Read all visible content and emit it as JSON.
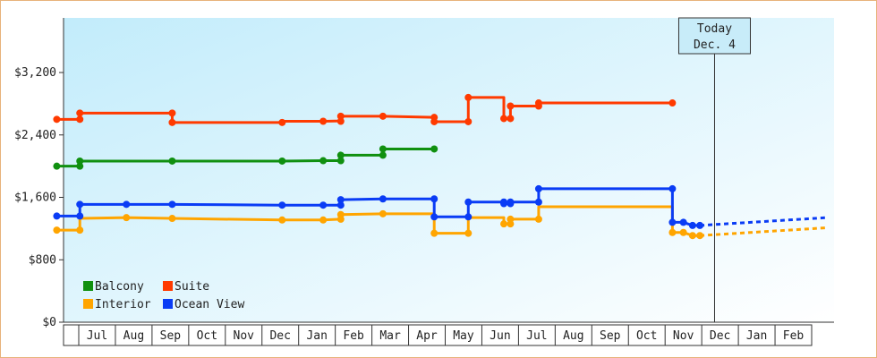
{
  "chart_data": {
    "type": "line",
    "title": "",
    "xlabel": "",
    "ylabel": "",
    "ylim": [
      0,
      3900
    ],
    "yticks": [
      0,
      800,
      1600,
      2400,
      3200
    ],
    "ytick_labels": [
      "$0",
      "$800",
      "$1,600",
      "$2,400",
      "$3,200"
    ],
    "xticks": [
      "Jul",
      "Aug",
      "Sep",
      "Oct",
      "Nov",
      "Dec",
      "Jan",
      "Feb",
      "Mar",
      "Apr",
      "May",
      "Jun",
      "Jul",
      "Aug",
      "Sep",
      "Oct",
      "Nov",
      "Dec",
      "Jan",
      "Feb"
    ],
    "grid": false,
    "background": "gradient light blue",
    "today_marker": {
      "line1": "Today",
      "line2": "Dec. 4",
      "x": 17.35
    },
    "legend": {
      "placement": "bottom-left",
      "entries": [
        {
          "name": "Balcony",
          "color": "#109010"
        },
        {
          "name": "Suite",
          "color": "#ff3a00"
        },
        {
          "name": "Interior",
          "color": "#ffa500"
        },
        {
          "name": "Ocean View",
          "color": "#0a3cf5"
        }
      ]
    },
    "series": [
      {
        "name": "Balcony",
        "color": "#109010",
        "points": [
          [
            -0.6,
            2000
          ],
          [
            0.03,
            2000
          ],
          [
            0.03,
            2065
          ],
          [
            2.55,
            2065
          ],
          [
            5.55,
            2065
          ],
          [
            6.67,
            2070
          ],
          [
            7.15,
            2070
          ],
          [
            7.15,
            2140
          ],
          [
            8.3,
            2140
          ],
          [
            8.3,
            2220
          ],
          [
            9.7,
            2220
          ]
        ]
      },
      {
        "name": "Suite",
        "color": "#ff3a00",
        "points": [
          [
            -0.6,
            2600
          ],
          [
            0.03,
            2600
          ],
          [
            0.03,
            2680
          ],
          [
            2.55,
            2680
          ],
          [
            2.55,
            2560
          ],
          [
            5.55,
            2560
          ],
          [
            5.55,
            2575
          ],
          [
            6.67,
            2575
          ],
          [
            7.15,
            2580
          ],
          [
            7.15,
            2640
          ],
          [
            8.3,
            2640
          ],
          [
            9.7,
            2625
          ],
          [
            9.7,
            2570
          ],
          [
            10.63,
            2570
          ],
          [
            10.63,
            2880
          ],
          [
            11.6,
            2880
          ],
          [
            11.6,
            2610
          ],
          [
            11.78,
            2610
          ],
          [
            11.78,
            2770
          ],
          [
            12.55,
            2770
          ],
          [
            12.55,
            2810
          ],
          [
            16.2,
            2810
          ]
        ]
      },
      {
        "name": "Interior",
        "color": "#ffa500",
        "points": [
          [
            -0.6,
            1180
          ],
          [
            0.03,
            1180
          ],
          [
            0.03,
            1330
          ],
          [
            1.3,
            1340
          ],
          [
            2.55,
            1330
          ],
          [
            5.55,
            1310
          ],
          [
            6.67,
            1310
          ],
          [
            7.15,
            1320
          ],
          [
            7.15,
            1380
          ],
          [
            8.3,
            1390
          ],
          [
            9.7,
            1390
          ],
          [
            9.7,
            1140
          ],
          [
            10.63,
            1140
          ],
          [
            10.63,
            1340
          ],
          [
            11.6,
            1340
          ],
          [
            11.6,
            1260
          ],
          [
            11.78,
            1260
          ],
          [
            11.78,
            1320
          ],
          [
            12.55,
            1320
          ],
          [
            12.55,
            1480
          ],
          [
            16.2,
            1480
          ],
          [
            16.2,
            1150
          ],
          [
            16.5,
            1150
          ],
          [
            16.75,
            1110
          ],
          [
            16.95,
            1110
          ]
        ]
      },
      {
        "name": "Ocean View",
        "color": "#0a3cf5",
        "points": [
          [
            -0.6,
            1360
          ],
          [
            0.03,
            1360
          ],
          [
            0.03,
            1510
          ],
          [
            1.3,
            1510
          ],
          [
            2.55,
            1510
          ],
          [
            5.55,
            1500
          ],
          [
            6.67,
            1500
          ],
          [
            7.15,
            1500
          ],
          [
            7.15,
            1570
          ],
          [
            8.3,
            1580
          ],
          [
            9.7,
            1580
          ],
          [
            9.7,
            1350
          ],
          [
            10.63,
            1350
          ],
          [
            10.63,
            1540
          ],
          [
            11.6,
            1540
          ],
          [
            11.6,
            1520
          ],
          [
            11.78,
            1520
          ],
          [
            11.78,
            1540
          ],
          [
            12.55,
            1540
          ],
          [
            12.55,
            1710
          ],
          [
            16.2,
            1710
          ],
          [
            16.2,
            1280
          ],
          [
            16.5,
            1280
          ],
          [
            16.75,
            1240
          ],
          [
            16.95,
            1240
          ]
        ]
      }
    ],
    "markers": {
      "Balcony": [
        [
          -0.6,
          2000
        ],
        [
          0.03,
          2000
        ],
        [
          0.03,
          2065
        ],
        [
          2.55,
          2065
        ],
        [
          5.55,
          2065
        ],
        [
          6.67,
          2070
        ],
        [
          7.15,
          2070
        ],
        [
          7.15,
          2140
        ],
        [
          8.3,
          2140
        ],
        [
          8.3,
          2220
        ],
        [
          9.7,
          2220
        ]
      ],
      "Suite": [
        [
          -0.6,
          2600
        ],
        [
          0.03,
          2600
        ],
        [
          0.03,
          2680
        ],
        [
          2.55,
          2680
        ],
        [
          2.55,
          2560
        ],
        [
          5.55,
          2560
        ],
        [
          6.67,
          2575
        ],
        [
          7.15,
          2575
        ],
        [
          7.15,
          2640
        ],
        [
          8.3,
          2640
        ],
        [
          9.7,
          2625
        ],
        [
          9.7,
          2570
        ],
        [
          10.63,
          2570
        ],
        [
          10.63,
          2880
        ],
        [
          11.6,
          2610
        ],
        [
          11.78,
          2610
        ],
        [
          11.78,
          2770
        ],
        [
          12.55,
          2770
        ],
        [
          12.55,
          2810
        ],
        [
          16.2,
          2810
        ]
      ],
      "Interior": [
        [
          -0.6,
          1180
        ],
        [
          0.03,
          1180
        ],
        [
          1.3,
          1340
        ],
        [
          2.55,
          1330
        ],
        [
          5.55,
          1310
        ],
        [
          6.67,
          1310
        ],
        [
          7.15,
          1320
        ],
        [
          7.15,
          1380
        ],
        [
          8.3,
          1390
        ],
        [
          9.7,
          1140
        ],
        [
          10.63,
          1140
        ],
        [
          11.6,
          1260
        ],
        [
          11.78,
          1260
        ],
        [
          11.78,
          1320
        ],
        [
          12.55,
          1320
        ],
        [
          16.2,
          1150
        ],
        [
          16.5,
          1150
        ],
        [
          16.75,
          1110
        ],
        [
          16.95,
          1110
        ]
      ],
      "Ocean View": [
        [
          -0.6,
          1360
        ],
        [
          0.03,
          1360
        ],
        [
          0.03,
          1510
        ],
        [
          1.3,
          1510
        ],
        [
          2.55,
          1510
        ],
        [
          5.55,
          1500
        ],
        [
          6.67,
          1500
        ],
        [
          7.15,
          1500
        ],
        [
          7.15,
          1570
        ],
        [
          8.3,
          1580
        ],
        [
          9.7,
          1580
        ],
        [
          9.7,
          1350
        ],
        [
          10.63,
          1350
        ],
        [
          10.63,
          1540
        ],
        [
          11.6,
          1540
        ],
        [
          11.6,
          1520
        ],
        [
          11.78,
          1520
        ],
        [
          11.78,
          1540
        ],
        [
          12.55,
          1540
        ],
        [
          12.55,
          1710
        ],
        [
          16.2,
          1710
        ],
        [
          16.2,
          1280
        ],
        [
          16.5,
          1280
        ],
        [
          16.75,
          1240
        ],
        [
          16.95,
          1240
        ]
      ]
    },
    "forecast": [
      {
        "name": "Ocean View",
        "color": "#0a3cf5",
        "points": [
          [
            16.95,
            1240
          ],
          [
            20.4,
            1340
          ]
        ]
      },
      {
        "name": "Interior",
        "color": "#ffa500",
        "points": [
          [
            16.95,
            1110
          ],
          [
            20.4,
            1210
          ]
        ]
      }
    ]
  }
}
